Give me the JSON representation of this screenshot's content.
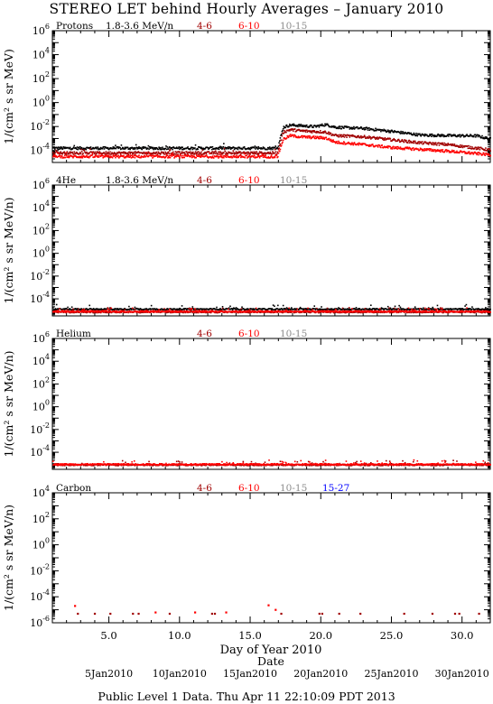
{
  "title": "STEREO LET behind Hourly Averages – January 2010",
  "footer": "Public Level 1 Data. Thu Apr 11 22:10:09 PDT 2013",
  "xlabel": "Day of Year 2010",
  "date_axis_label": "Date",
  "colors": {
    "black": "#000000",
    "darkred": "#a00000",
    "red": "#ff0000",
    "gray": "#8c8c8c",
    "blue": "#0000ff"
  },
  "chart_data": [
    {
      "type": "scatter",
      "label": "Protons",
      "energy_label": "1.8-3.6 MeV/n",
      "ylabel": "1/(cm² s sr MeV)",
      "y_log": true,
      "ylim_exp": [
        -5,
        6
      ],
      "ytick_exps": [
        6,
        4,
        2,
        0,
        -2,
        -4
      ],
      "xlim": [
        1,
        32
      ],
      "legend": [
        {
          "name": "4-6",
          "color": "darkred"
        },
        {
          "name": "6-10",
          "color": "red"
        },
        {
          "name": "10-15",
          "color": "gray"
        }
      ],
      "series": [
        {
          "name": "1.8-3.6 MeV/n",
          "color": "black",
          "profile": [
            [
              1,
              -3.75
            ],
            [
              16.9,
              -3.75
            ],
            [
              17.3,
              -2.0
            ],
            [
              17.8,
              -1.82
            ],
            [
              18.3,
              -1.85
            ],
            [
              19.5,
              -1.95
            ],
            [
              20.3,
              -1.78
            ],
            [
              21.0,
              -2.0
            ],
            [
              23.0,
              -2.1
            ],
            [
              25.0,
              -2.35
            ],
            [
              27.0,
              -2.65
            ],
            [
              29.0,
              -2.7
            ],
            [
              31.0,
              -2.72
            ],
            [
              32,
              -3.0
            ]
          ]
        },
        {
          "name": "4-6",
          "color": "darkred",
          "profile": [
            [
              1,
              -4.15
            ],
            [
              16.9,
              -4.15
            ],
            [
              17.3,
              -2.4
            ],
            [
              17.8,
              -2.2
            ],
            [
              18.5,
              -2.3
            ],
            [
              20.3,
              -2.4
            ],
            [
              21.0,
              -2.7
            ],
            [
              23.0,
              -2.8
            ],
            [
              25.0,
              -3.05
            ],
            [
              27.0,
              -3.3
            ],
            [
              29.0,
              -3.45
            ],
            [
              32,
              -3.9
            ]
          ]
        },
        {
          "name": "6-10",
          "color": "red",
          "profile": [
            [
              1,
              -4.45
            ],
            [
              16.9,
              -4.45
            ],
            [
              17.3,
              -3.0
            ],
            [
              17.8,
              -2.7
            ],
            [
              18.5,
              -2.8
            ],
            [
              20.3,
              -2.9
            ],
            [
              21.0,
              -3.25
            ],
            [
              23.0,
              -3.45
            ],
            [
              25.0,
              -3.7
            ],
            [
              27.0,
              -3.85
            ],
            [
              29.0,
              -4.0
            ],
            [
              32,
              -4.3
            ]
          ]
        }
      ]
    },
    {
      "type": "scatter",
      "label": "4He",
      "energy_label": "1.8-3.6 MeV/n",
      "ylabel": "1/(cm² s sr MeV/n)",
      "y_log": true,
      "ylim_exp": [
        -5.5,
        6
      ],
      "ytick_exps": [
        6,
        4,
        2,
        0,
        -2,
        -4
      ],
      "xlim": [
        1,
        32
      ],
      "legend": [
        {
          "name": "4-6",
          "color": "darkred"
        },
        {
          "name": "6-10",
          "color": "red"
        },
        {
          "name": "10-15",
          "color": "gray"
        }
      ],
      "series": [
        {
          "name": "1.8-3.6 MeV/n",
          "color": "black",
          "profile": [
            [
              1,
              -4.85
            ],
            [
              32,
              -4.85
            ]
          ]
        },
        {
          "name": "4-6",
          "color": "darkred",
          "profile": [
            [
              1,
              -5.1
            ],
            [
              32,
              -5.1
            ]
          ]
        },
        {
          "name": "6-10",
          "color": "red",
          "profile": [
            [
              1,
              -5.05
            ],
            [
              32,
              -5.05
            ]
          ]
        }
      ]
    },
    {
      "type": "scatter",
      "label": "Helium",
      "energy_label": "",
      "ylabel": "1/(cm² s sr MeV/n)",
      "y_log": true,
      "ylim_exp": [
        -5.5,
        6
      ],
      "ytick_exps": [
        6,
        4,
        2,
        0,
        -2,
        -4
      ],
      "xlim": [
        1,
        32
      ],
      "legend": [
        {
          "name": "4-6",
          "color": "darkred"
        },
        {
          "name": "6-10",
          "color": "red"
        },
        {
          "name": "10-15",
          "color": "gray"
        }
      ],
      "series": [
        {
          "name": "4-6",
          "color": "darkred",
          "profile": [
            [
              1,
              -5.05
            ],
            [
              32,
              -5.05
            ]
          ]
        },
        {
          "name": "6-10",
          "color": "red",
          "profile": [
            [
              1,
              -5.0
            ],
            [
              32,
              -5.0
            ]
          ]
        }
      ]
    },
    {
      "type": "scatter",
      "label": "Carbon",
      "energy_label": "",
      "ylabel": "1/(cm² s sr MeV/n)",
      "y_log": true,
      "ylim_exp": [
        -6,
        4
      ],
      "ytick_exps": [
        4,
        2,
        0,
        -2,
        -4,
        -6
      ],
      "xlim": [
        1,
        32
      ],
      "legend": [
        {
          "name": "4-6",
          "color": "darkred"
        },
        {
          "name": "6-10",
          "color": "red"
        },
        {
          "name": "10-15",
          "color": "gray"
        },
        {
          "name": "15-27",
          "color": "blue"
        }
      ],
      "points": [
        {
          "x": 2.6,
          "y": -4.7,
          "color": "red"
        },
        {
          "x": 2.8,
          "y": -5.3,
          "color": "darkred"
        },
        {
          "x": 4.0,
          "y": -5.3,
          "color": "darkred"
        },
        {
          "x": 5.1,
          "y": -5.3,
          "color": "darkred"
        },
        {
          "x": 6.7,
          "y": -5.3,
          "color": "darkred"
        },
        {
          "x": 7.1,
          "y": -5.3,
          "color": "darkred"
        },
        {
          "x": 8.3,
          "y": -5.2,
          "color": "red"
        },
        {
          "x": 9.3,
          "y": -5.3,
          "color": "darkred"
        },
        {
          "x": 11.1,
          "y": -5.2,
          "color": "red"
        },
        {
          "x": 12.3,
          "y": -5.3,
          "color": "darkred"
        },
        {
          "x": 12.5,
          "y": -5.3,
          "color": "darkred"
        },
        {
          "x": 13.3,
          "y": -5.2,
          "color": "red"
        },
        {
          "x": 16.3,
          "y": -4.65,
          "color": "red"
        },
        {
          "x": 16.8,
          "y": -5.0,
          "color": "red"
        },
        {
          "x": 17.2,
          "y": -5.3,
          "color": "darkred"
        },
        {
          "x": 19.9,
          "y": -5.3,
          "color": "darkred"
        },
        {
          "x": 20.1,
          "y": -5.3,
          "color": "darkred"
        },
        {
          "x": 21.3,
          "y": -5.3,
          "color": "darkred"
        },
        {
          "x": 22.8,
          "y": -5.3,
          "color": "darkred"
        },
        {
          "x": 25.9,
          "y": -5.3,
          "color": "darkred"
        },
        {
          "x": 27.9,
          "y": -5.3,
          "color": "darkred"
        },
        {
          "x": 29.5,
          "y": -5.3,
          "color": "darkred"
        },
        {
          "x": 29.8,
          "y": -5.3,
          "color": "darkred"
        },
        {
          "x": 31.2,
          "y": -5.3,
          "color": "darkred"
        }
      ]
    }
  ],
  "x_axis": {
    "xlim": [
      1,
      32
    ],
    "major_ticks": [
      5,
      10,
      15,
      20,
      25,
      30
    ],
    "tick_labels": [
      "5.0",
      "10.0",
      "15.0",
      "20.0",
      "25.0",
      "30.0"
    ]
  },
  "date_axis": {
    "ticks": [
      5,
      10,
      15,
      20,
      25,
      30
    ],
    "labels": [
      "5Jan2010",
      "10Jan2010",
      "15Jan2010",
      "20Jan2010",
      "25Jan2010",
      "30Jan2010"
    ]
  }
}
